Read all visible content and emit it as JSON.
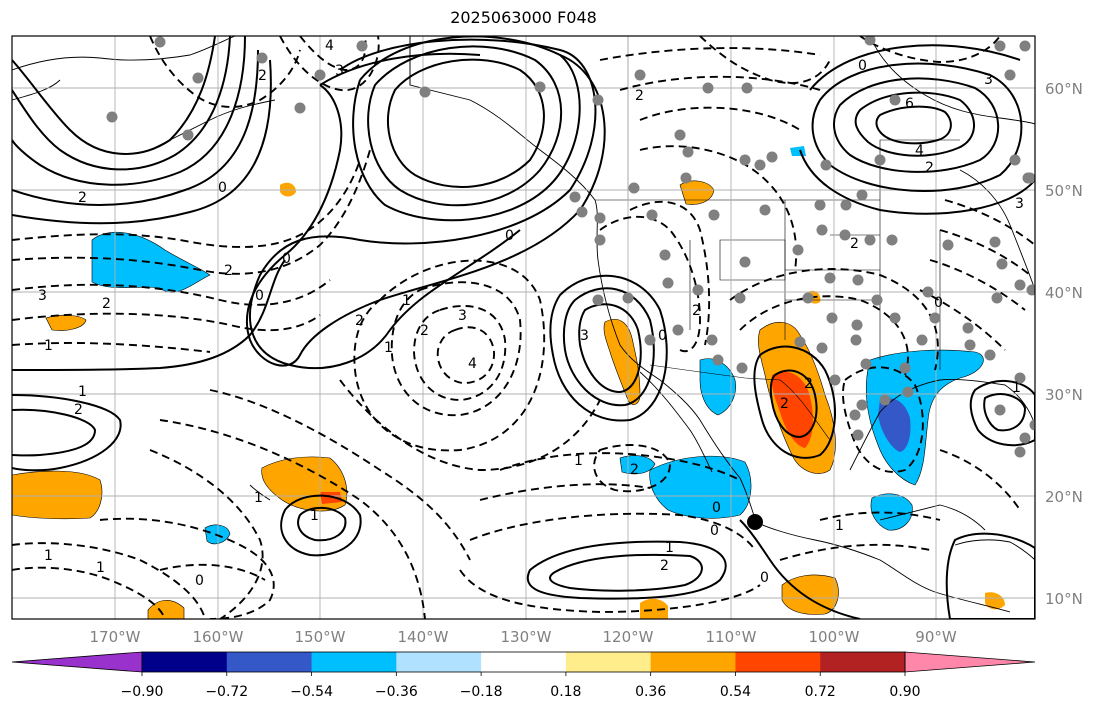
{
  "title": "2025063000 F048",
  "map": {
    "lon_ticks": [
      "170°W",
      "160°W",
      "150°W",
      "140°W",
      "130°W",
      "120°W",
      "110°W",
      "100°W",
      "90°W"
    ],
    "lat_ticks": [
      "60°N",
      "50°N",
      "40°N",
      "30°N",
      "20°N",
      "10°N"
    ],
    "grid": true,
    "station_marker_color": "#808080",
    "storm_center": {
      "lon": -107.0,
      "lat": 17.3
    }
  },
  "colorbar": {
    "colors": [
      "#9932cc",
      "#00008b",
      "#3558c8",
      "#00bfff",
      "#b0e2ff",
      "#ffffff",
      "#ffec8b",
      "#ffa500",
      "#ff4500",
      "#b22222",
      "#ff88aa"
    ],
    "tick_labels": [
      "−0.90",
      "−0.72",
      "−0.54",
      "−0.36",
      "−0.18",
      "0.18",
      "0.36",
      "0.54",
      "0.72",
      "0.90"
    ],
    "extend": "both"
  },
  "contour_labels": {
    "a": "4",
    "b": "3",
    "c": "2",
    "d": "0",
    "e": "2",
    "f": "3",
    "g": "1",
    "h": "2",
    "i": "0",
    "j": "2",
    "k": "1",
    "l": "0",
    "m": "2",
    "n": "3",
    "o": "4",
    "p": "0",
    "q": "2",
    "r": "1",
    "s": "0",
    "t": "6",
    "u": "4",
    "v": "3",
    "w": "2",
    "x": "2",
    "y": "0",
    "z": "1",
    "aa": "1",
    "ab": "2",
    "ac": "1",
    "ad": "1",
    "ae": "2",
    "af": "0",
    "ag": "0",
    "ah": "1",
    "ai": "0",
    "aj": "0",
    "ak": "2",
    "al": "1",
    "am": "2",
    "an": "2",
    "ao": "1",
    "ap": "0",
    "aq": "2",
    "ar": "3",
    "as": "1",
    "at": "1",
    "au": "2",
    "av": "3"
  }
}
